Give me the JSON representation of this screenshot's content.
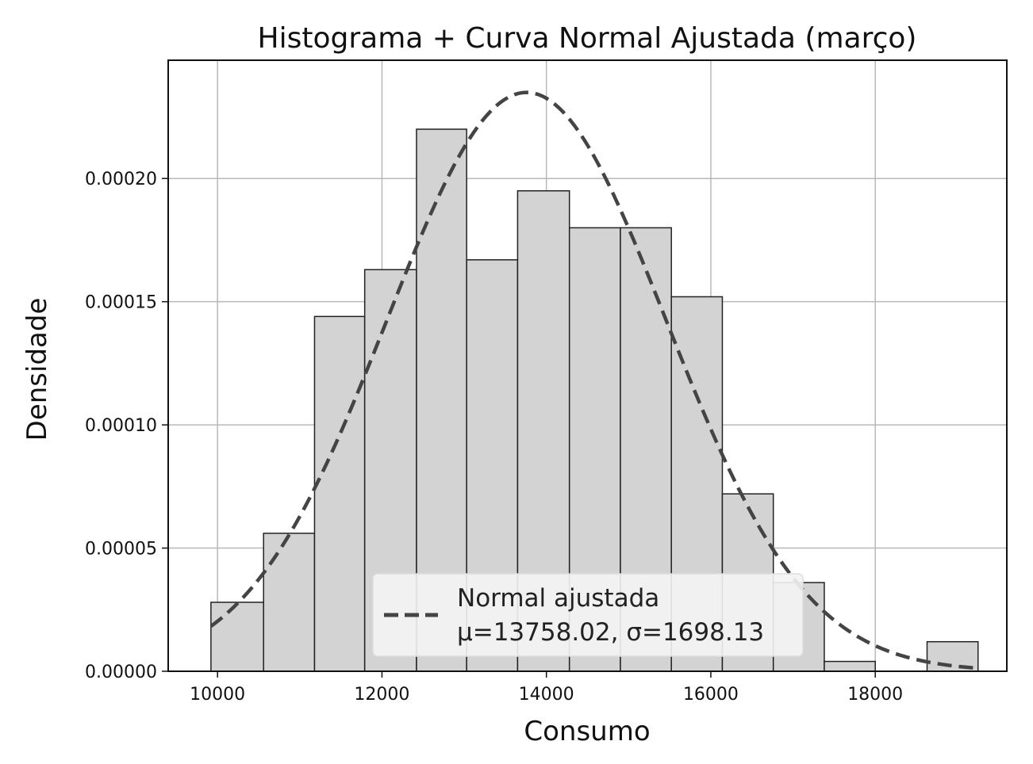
{
  "chart_data": {
    "type": "bar",
    "title": "Histograma + Curva Normal Ajustada (março)",
    "xlabel": "Consumo",
    "ylabel": "Densidade",
    "xlim": [
      9400,
      19600
    ],
    "ylim": [
      0,
      0.000248
    ],
    "x_ticks": [
      10000,
      12000,
      14000,
      16000,
      18000
    ],
    "x_tick_labels": [
      "10000",
      "12000",
      "14000",
      "16000",
      "18000"
    ],
    "y_ticks": [
      0,
      5e-05,
      0.0001,
      0.00015,
      0.0002
    ],
    "y_tick_labels": [
      "0.00000",
      "0.00005",
      "0.00010",
      "0.00015",
      "0.00020"
    ],
    "grid": true,
    "bar_color": "#d3d3d3",
    "bar_edge_color": "#222222",
    "histogram": {
      "bins": [
        {
          "x0": 9920,
          "x1": 10560,
          "density": 2.8e-05
        },
        {
          "x0": 10560,
          "x1": 11180,
          "density": 5.6e-05
        },
        {
          "x0": 11180,
          "x1": 11790,
          "density": 0.000144
        },
        {
          "x0": 11790,
          "x1": 12420,
          "density": 0.000163
        },
        {
          "x0": 12420,
          "x1": 13030,
          "density": 0.00022
        },
        {
          "x0": 13030,
          "x1": 13650,
          "density": 0.000167
        },
        {
          "x0": 13650,
          "x1": 14280,
          "density": 0.000195
        },
        {
          "x0": 14280,
          "x1": 14900,
          "density": 0.00018
        },
        {
          "x0": 14900,
          "x1": 15520,
          "density": 0.00018
        },
        {
          "x0": 15520,
          "x1": 16140,
          "density": 0.000152
        },
        {
          "x0": 16140,
          "x1": 16760,
          "density": 7.2e-05
        },
        {
          "x0": 16760,
          "x1": 17380,
          "density": 3.6e-05
        },
        {
          "x0": 17380,
          "x1": 18000,
          "density": 4e-06
        },
        {
          "x0": 18000,
          "x1": 18630,
          "density": 0
        },
        {
          "x0": 18630,
          "x1": 19250,
          "density": 1.2e-05
        }
      ]
    },
    "series": [
      {
        "name": "Normal ajustada",
        "type": "line",
        "style": "dashed",
        "color": "#444444",
        "mu": 13758.02,
        "sigma": 1698.13,
        "x_range": [
          9920,
          19250
        ]
      }
    ],
    "legend": {
      "placement": "lower-center",
      "line1": "Normal ajustada",
      "line2": "μ=13758.02, σ=1698.13"
    }
  }
}
